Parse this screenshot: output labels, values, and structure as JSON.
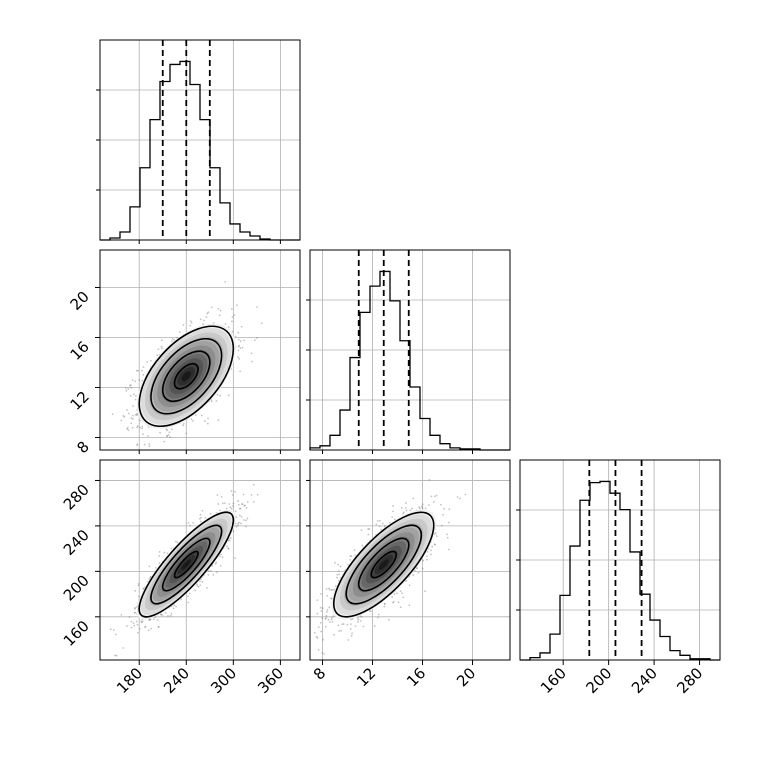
{
  "chart_data": {
    "type": "corner",
    "title": "",
    "grid": true,
    "colors": {
      "line": "#000000",
      "grid": "#b0b0b0",
      "scatter": "#7a7a7a"
    },
    "parameters": [
      {
        "key": "p0",
        "axis_range": [
          130,
          385
        ],
        "ticks": [
          180,
          240,
          300,
          360
        ],
        "tick_labels": [
          "180",
          "240",
          "300",
          "360"
        ],
        "quantiles": [
          210,
          240,
          270
        ],
        "hist": {
          "edges": [
            130,
            142.75,
            155.5,
            168.25,
            181,
            193.75,
            206.5,
            219.25,
            232,
            244.75,
            257.5,
            270.25,
            283,
            295.75,
            308.5,
            321.25,
            334,
            346.75,
            359.5,
            372.25,
            385
          ],
          "counts": [
            0,
            2,
            8,
            33,
            72,
            120,
            158,
            175,
            178,
            155,
            120,
            72,
            37,
            16,
            8,
            4,
            1,
            0,
            0,
            0
          ]
        }
      },
      {
        "key": "p1",
        "axis_range": [
          7.0,
          23.0
        ],
        "ticks": [
          8,
          12,
          16,
          20
        ],
        "tick_labels": [
          "8",
          "12",
          "16",
          "20"
        ],
        "quantiles": [
          10.9,
          12.9,
          14.9
        ],
        "hist": {
          "edges": [
            7.0,
            7.8,
            8.6,
            9.4,
            10.2,
            11.0,
            11.8,
            12.6,
            13.4,
            14.2,
            15.0,
            15.8,
            16.6,
            17.4,
            18.2,
            19.0,
            19.8,
            20.6,
            21.4,
            22.2,
            23.0
          ],
          "counts": [
            2,
            4,
            14,
            38,
            88,
            131,
            156,
            170,
            142,
            104,
            60,
            30,
            14,
            6,
            2,
            1,
            1,
            0,
            0,
            0
          ]
        }
      },
      {
        "key": "p2",
        "axis_range": [
          122,
          298
        ],
        "ticks": [
          160,
          200,
          240,
          280
        ],
        "tick_labels": [
          "160",
          "200",
          "240",
          "280"
        ],
        "quantiles": [
          183,
          206,
          229
        ],
        "hist": {
          "edges": [
            122,
            130.8,
            139.6,
            148.4,
            157.2,
            166,
            174.8,
            183.6,
            192.4,
            201.2,
            210,
            218.8,
            227.6,
            236.4,
            245.2,
            254,
            262.8,
            271.6,
            280.4,
            289.2,
            298
          ],
          "counts": [
            0,
            2,
            6,
            22,
            55,
            97,
            136,
            151,
            152,
            142,
            128,
            92,
            56,
            34,
            20,
            8,
            4,
            1,
            1,
            0
          ]
        }
      }
    ],
    "pairs": [
      {
        "x": "p0",
        "y": "p1",
        "center": [
          240,
          12.9
        ],
        "sd": [
          30,
          2.0
        ],
        "rho": 0.55
      },
      {
        "x": "p0",
        "y": "p2",
        "center": [
          240,
          206
        ],
        "sd": [
          30,
          23
        ],
        "rho": 0.85
      },
      {
        "x": "p1",
        "y": "p2",
        "center": [
          12.9,
          206
        ],
        "sd": [
          2.0,
          23
        ],
        "rho": 0.75
      }
    ],
    "scatter_points_per_panel": 1400,
    "density_levels": 12,
    "contour_levels": [
      0.5,
      1.0,
      1.5,
      2.0
    ]
  }
}
